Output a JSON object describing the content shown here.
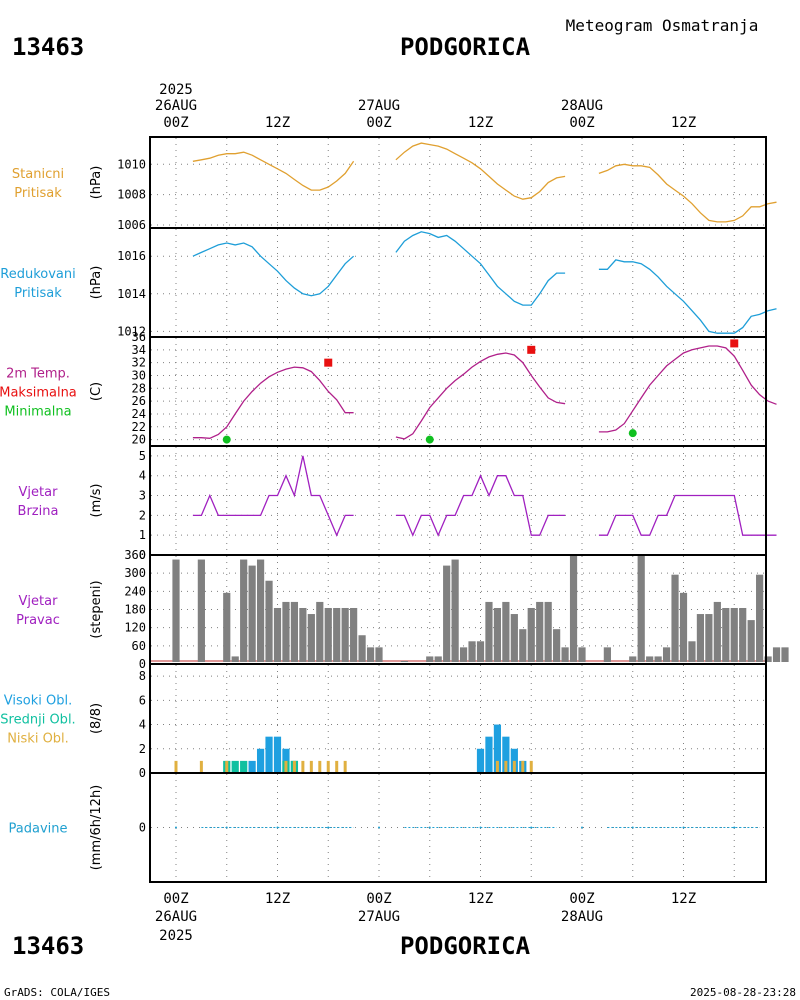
{
  "header": {
    "station_id": "13463",
    "station_name": "PODGORICA",
    "product": "Meteogram Osmatranja"
  },
  "footer": {
    "station_id": "13463",
    "station_name": "PODGORICA",
    "credit": "GrADS: COLA/IGES",
    "timestamp": "2025-08-28-23:28"
  },
  "time_axis": {
    "top_year": "2025",
    "bottom_year": "2025",
    "labels": [
      {
        "hour": 0,
        "time": "00Z",
        "date": "26AUG"
      },
      {
        "hour": 12,
        "time": "12Z",
        "date": ""
      },
      {
        "hour": 24,
        "time": "00Z",
        "date": "27AUG"
      },
      {
        "hour": 36,
        "time": "12Z",
        "date": ""
      },
      {
        "hour": 48,
        "time": "00Z",
        "date": "28AUG"
      },
      {
        "hour": 60,
        "time": "12Z",
        "date": ""
      }
    ]
  },
  "colors": {
    "station_pressure": "#e0a030",
    "reduced_pressure": "#1e9ed8",
    "temperature": "#b0208a",
    "tmax": "#e81010",
    "tmin": "#10c020",
    "wind": "#a020c0",
    "direction_bar": "#808080",
    "direction_base": "#c03030",
    "high_cloud": "#1ea0e0",
    "mid_cloud": "#10c0a0",
    "low_cloud": "#e0b040",
    "precip": "#20a0d0",
    "grid": "#808080"
  },
  "panels": [
    {
      "key": "station_pressure",
      "label_lines": [
        "Stanicni",
        "Pritisak"
      ],
      "unit": "(hPa)"
    },
    {
      "key": "reduced_pressure",
      "label_lines": [
        "Redukovani",
        "Pritisak"
      ],
      "unit": "(hPa)"
    },
    {
      "key": "temperature",
      "label_lines": [
        "2m Temp.",
        "Maksimalna",
        "Minimalna"
      ],
      "unit": "(C)"
    },
    {
      "key": "wind_speed",
      "label_lines": [
        "Vjetar",
        "Brzina"
      ],
      "unit": "(m/s)"
    },
    {
      "key": "wind_direction",
      "label_lines": [
        "Vjetar",
        "Pravac"
      ],
      "unit": "(stepeni)"
    },
    {
      "key": "clouds",
      "label_lines": [
        "Visoki Obl.",
        "Srednji Obl.",
        "Niski Obl."
      ],
      "unit": "(8/8)"
    },
    {
      "key": "precipitation",
      "label_lines": [
        "Padavine"
      ],
      "unit": "(mm/6h/12h)"
    }
  ],
  "chart_data": [
    {
      "type": "line",
      "name": "station_pressure",
      "title": "Stanicni Pritisak",
      "ylabel": "(hPa)",
      "ylim": [
        1005.8,
        1011.8
      ],
      "yticks": [
        1006,
        1008,
        1010
      ],
      "series": [
        {
          "x": [
            2,
            3,
            4,
            5,
            6,
            7,
            8,
            9,
            10,
            11,
            12,
            13,
            14,
            15,
            16,
            17,
            18,
            19,
            20,
            21
          ],
          "y": [
            1010.2,
            1010.3,
            1010.4,
            1010.6,
            1010.7,
            1010.7,
            1010.8,
            1010.6,
            1010.3,
            1010.0,
            1009.7,
            1009.4,
            1009.0,
            1008.6,
            1008.3,
            1008.3,
            1008.5,
            1008.9,
            1009.4,
            1010.2
          ]
        },
        {
          "x": [
            26,
            27,
            28,
            29,
            30,
            31,
            32,
            33,
            34,
            35,
            36,
            37,
            38,
            39,
            40,
            41,
            42,
            43,
            44,
            45,
            46
          ],
          "y": [
            1010.3,
            1010.8,
            1011.2,
            1011.4,
            1011.3,
            1011.2,
            1011.0,
            1010.7,
            1010.4,
            1010.1,
            1009.7,
            1009.2,
            1008.7,
            1008.3,
            1007.9,
            1007.7,
            1007.8,
            1008.2,
            1008.8,
            1009.1,
            1009.2
          ]
        },
        {
          "x": [
            50,
            51,
            52,
            53,
            54,
            55,
            56,
            57,
            58,
            59,
            60,
            61,
            62,
            63,
            64,
            65,
            66,
            67,
            68,
            69,
            70,
            71
          ],
          "y": [
            1009.4,
            1009.6,
            1009.9,
            1010.0,
            1009.9,
            1009.9,
            1009.8,
            1009.3,
            1008.7,
            1008.3,
            1007.9,
            1007.4,
            1006.8,
            1006.3,
            1006.2,
            1006.2,
            1006.3,
            1006.6,
            1007.2,
            1007.2,
            1007.4,
            1007.5
          ]
        }
      ]
    },
    {
      "type": "line",
      "name": "reduced_pressure",
      "title": "Redukovani Pritisak",
      "ylabel": "(hPa)",
      "ylim": [
        1011.7,
        1017.5
      ],
      "yticks": [
        1012,
        1014,
        1016
      ],
      "series": [
        {
          "x": [
            2,
            3,
            4,
            5,
            6,
            7,
            8,
            9,
            10,
            11,
            12,
            13,
            14,
            15,
            16,
            17,
            18,
            19,
            20,
            21
          ],
          "y": [
            1016.0,
            1016.2,
            1016.4,
            1016.6,
            1016.7,
            1016.6,
            1016.7,
            1016.5,
            1016.0,
            1015.6,
            1015.2,
            1014.7,
            1014.3,
            1014.0,
            1013.9,
            1014.0,
            1014.4,
            1015.0,
            1015.6,
            1016.0
          ]
        },
        {
          "x": [
            26,
            27,
            28,
            29,
            30,
            31,
            32,
            33,
            34,
            35,
            36,
            37,
            38,
            39,
            40,
            41,
            42,
            43,
            44,
            45,
            46
          ],
          "y": [
            1016.2,
            1016.8,
            1017.1,
            1017.3,
            1017.2,
            1017.0,
            1017.1,
            1016.8,
            1016.4,
            1016.0,
            1015.6,
            1015.0,
            1014.4,
            1014.0,
            1013.6,
            1013.4,
            1013.4,
            1014.0,
            1014.7,
            1015.1,
            1015.1
          ]
        },
        {
          "x": [
            50,
            51,
            52,
            53,
            54,
            55,
            56,
            57,
            58,
            59,
            60,
            61,
            62,
            63,
            64,
            65,
            66,
            67,
            68,
            69,
            70,
            71
          ],
          "y": [
            1015.3,
            1015.3,
            1015.8,
            1015.7,
            1015.7,
            1015.6,
            1015.3,
            1014.9,
            1014.4,
            1014.0,
            1013.6,
            1013.1,
            1012.6,
            1012.0,
            1011.9,
            1011.9,
            1011.9,
            1012.2,
            1012.8,
            1012.9,
            1013.1,
            1013.2
          ]
        }
      ]
    },
    {
      "type": "line",
      "name": "temperature",
      "title": "2m Temp. Maksimalna Minimalna",
      "ylabel": "(C)",
      "ylim": [
        19,
        36
      ],
      "yticks": [
        20,
        22,
        24,
        26,
        28,
        30,
        32,
        34,
        36
      ],
      "series": [
        {
          "name": "2m Temp.",
          "segments": [
            {
              "x": [
                2,
                3,
                4,
                5,
                6,
                7,
                8,
                9,
                10,
                11,
                12,
                13,
                14,
                15,
                16,
                17,
                18,
                19,
                20,
                21
              ],
              "y": [
                20.3,
                20.3,
                20.2,
                20.8,
                22.0,
                24.0,
                26.0,
                27.5,
                28.8,
                29.8,
                30.5,
                31.0,
                31.3,
                31.2,
                30.6,
                29.2,
                27.5,
                26.2,
                24.2,
                24.2
              ]
            },
            {
              "x": [
                26,
                27,
                28,
                29,
                30,
                31,
                32,
                33,
                34,
                35,
                36,
                37,
                38,
                39,
                40,
                41,
                42,
                43,
                44,
                45,
                46
              ],
              "y": [
                20.4,
                20.1,
                20.9,
                22.9,
                25.0,
                26.5,
                28.0,
                29.2,
                30.2,
                31.3,
                32.2,
                32.9,
                33.3,
                33.5,
                33.2,
                32.0,
                30.0,
                28.2,
                26.5,
                25.8,
                25.6
              ]
            },
            {
              "x": [
                50,
                51,
                52,
                53,
                54,
                55,
                56,
                57,
                58,
                59,
                60,
                61,
                62,
                63,
                64,
                65,
                66,
                67,
                68,
                69,
                70,
                71
              ],
              "y": [
                21.2,
                21.2,
                21.5,
                22.5,
                24.5,
                26.5,
                28.5,
                30.0,
                31.5,
                32.5,
                33.5,
                34.0,
                34.3,
                34.6,
                34.6,
                34.3,
                33.0,
                30.8,
                28.5,
                27.0,
                26.0,
                25.5
              ]
            }
          ]
        },
        {
          "name": "Maksimalna",
          "x": [
            18,
            42,
            66
          ],
          "y": [
            32.0,
            34.0,
            35.0
          ]
        },
        {
          "name": "Minimalna",
          "x": [
            6,
            30,
            54
          ],
          "y": [
            20.0,
            20.0,
            21.0
          ]
        }
      ]
    },
    {
      "type": "line",
      "name": "wind_speed",
      "title": "Vjetar Brzina",
      "ylabel": "(m/s)",
      "ylim": [
        0,
        5.5
      ],
      "yticks": [
        0,
        1,
        2,
        3,
        4,
        5
      ],
      "series": [
        {
          "x": [
            2,
            3,
            4,
            5,
            6,
            7,
            8,
            9,
            10,
            11,
            12,
            13,
            14,
            15,
            16,
            17,
            18,
            19,
            20,
            21
          ],
          "y": [
            2,
            2,
            3,
            2,
            2,
            2,
            2,
            2,
            2,
            3,
            3,
            4,
            3,
            5,
            3,
            3,
            2,
            1,
            2,
            2
          ]
        },
        {
          "x": [
            26,
            27,
            28,
            29,
            30,
            31,
            32,
            33,
            34,
            35,
            36,
            37,
            38,
            39,
            40,
            41,
            42,
            43,
            44,
            45,
            46
          ],
          "y": [
            2,
            2,
            1,
            2,
            2,
            1,
            2,
            2,
            3,
            3,
            4,
            3,
            4,
            4,
            3,
            3,
            1,
            1,
            2,
            2,
            2
          ]
        },
        {
          "x": [
            50,
            51,
            52,
            53,
            54,
            55,
            56,
            57,
            58,
            59,
            60,
            61,
            62,
            63,
            64,
            65,
            66,
            67,
            68,
            69,
            70,
            71
          ],
          "y": [
            1,
            1,
            2,
            2,
            2,
            1,
            1,
            2,
            2,
            3,
            3,
            3,
            3,
            3,
            3,
            3,
            3,
            1,
            1,
            1,
            1,
            1
          ]
        }
      ]
    },
    {
      "type": "bar",
      "name": "wind_direction",
      "title": "Vjetar Pravac",
      "ylabel": "(stepeni)",
      "ylim": [
        0,
        360
      ],
      "yticks": [
        0,
        60,
        120,
        180,
        240,
        300,
        360
      ],
      "x": [
        0,
        3,
        6,
        7,
        8,
        9,
        10,
        11,
        12,
        13,
        14,
        15,
        16,
        17,
        18,
        19,
        20,
        21,
        22,
        23,
        24,
        27,
        30,
        31,
        32,
        33,
        34,
        35,
        36,
        37,
        38,
        39,
        40,
        41,
        42,
        43,
        44,
        45,
        46,
        47,
        48,
        51,
        54,
        55,
        56,
        57,
        58,
        59,
        60,
        61,
        62,
        63,
        64,
        65,
        66,
        67,
        68,
        69,
        70,
        71,
        72
      ],
      "values": [
        345,
        345,
        235,
        25,
        345,
        325,
        345,
        275,
        185,
        205,
        205,
        185,
        165,
        205,
        185,
        185,
        185,
        185,
        95,
        55,
        55,
        10,
        25,
        25,
        325,
        345,
        55,
        75,
        75,
        205,
        185,
        205,
        165,
        115,
        185,
        205,
        205,
        115,
        55,
        360,
        55,
        55,
        25,
        360,
        25,
        25,
        55,
        295,
        235,
        75,
        165,
        165,
        205,
        185,
        185,
        185,
        145,
        295,
        25,
        55,
        55
      ]
    },
    {
      "type": "bar",
      "name": "clouds",
      "title": "Visoki Obl. Srednji Obl. Niski Obl.",
      "ylabel": "(8/8)",
      "ylim": [
        0,
        9
      ],
      "yticks": [
        0,
        2,
        4,
        6,
        8
      ],
      "series": [
        {
          "name": "Visoki Obl.",
          "x": [
            9,
            10,
            11,
            12,
            13,
            14,
            36,
            37,
            38,
            39,
            40,
            41
          ],
          "values": [
            1,
            2,
            3,
            3,
            2,
            1,
            2,
            3,
            4,
            3,
            2,
            1
          ]
        },
        {
          "name": "Srednji Obl.",
          "x": [
            6,
            7,
            8,
            13,
            14
          ],
          "values": [
            1,
            1,
            1,
            1,
            1
          ]
        },
        {
          "name": "Niski Obl.",
          "x": [
            0,
            3,
            6,
            13,
            14,
            15,
            16,
            17,
            18,
            19,
            20,
            38,
            39,
            40,
            41,
            42
          ],
          "values": [
            1,
            1,
            1,
            1,
            1,
            1,
            1,
            1,
            1,
            1,
            1,
            1,
            1,
            1,
            1,
            1
          ]
        }
      ]
    },
    {
      "type": "line",
      "name": "precipitation",
      "title": "Padavine",
      "ylabel": "(mm/6h/12h)",
      "ylim": [
        -1,
        1
      ],
      "yticks": [
        0
      ],
      "series": [
        {
          "x": [
            0,
            6,
            12,
            18,
            24,
            30,
            36,
            42,
            48,
            54,
            60,
            66,
            72
          ],
          "values": [
            0,
            0,
            0,
            0,
            0,
            0,
            0,
            0,
            0,
            0,
            0,
            0,
            0
          ]
        }
      ]
    }
  ]
}
